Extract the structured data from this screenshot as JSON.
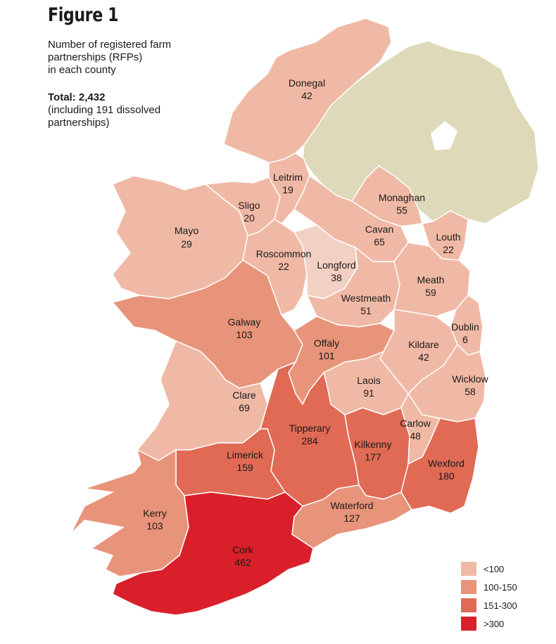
{
  "figure_title": "Figure 1",
  "description_lines": [
    "Number of registered farm",
    "partnerships (RFPs)",
    "in each county"
  ],
  "total": {
    "label": "Total: 2,432",
    "lines": [
      "(including 191 dissolved",
      "partnerships)"
    ]
  },
  "colors": {
    "under_100": "#f0b9a5",
    "range_100_150": "#e8947a",
    "range_151_300": "#e06a54",
    "over_300": "#d9202a",
    "longford_light": "#f3d0c4",
    "northern_ireland": "#ddd9b9",
    "border": "#ffffff"
  },
  "counties": [
    {
      "name": "Donegal",
      "value": "42"
    },
    {
      "name": "Leitrim",
      "value": "19"
    },
    {
      "name": "Sligo",
      "value": "20"
    },
    {
      "name": "Mayo",
      "value": "29"
    },
    {
      "name": "Monaghan",
      "value": "55"
    },
    {
      "name": "Cavan",
      "value": "65"
    },
    {
      "name": "Louth",
      "value": "22"
    },
    {
      "name": "Roscommon",
      "value": "22"
    },
    {
      "name": "Longford",
      "value": "38"
    },
    {
      "name": "Meath",
      "value": "59"
    },
    {
      "name": "Westmeath",
      "value": "51"
    },
    {
      "name": "Galway",
      "value": "103"
    },
    {
      "name": "Dublin",
      "value": "6"
    },
    {
      "name": "Offaly",
      "value": "101"
    },
    {
      "name": "Kildare",
      "value": "42"
    },
    {
      "name": "Laois",
      "value": "91"
    },
    {
      "name": "Wicklow",
      "value": "58"
    },
    {
      "name": "Clare",
      "value": "69"
    },
    {
      "name": "Tipperary",
      "value": "284"
    },
    {
      "name": "Carlow",
      "value": "48"
    },
    {
      "name": "Kilkenny",
      "value": "177"
    },
    {
      "name": "Limerick",
      "value": "159"
    },
    {
      "name": "Wexford",
      "value": "180"
    },
    {
      "name": "Waterford",
      "value": "127"
    },
    {
      "name": "Kerry",
      "value": "103"
    },
    {
      "name": "Cork",
      "value": "462"
    }
  ],
  "legend": [
    {
      "label": "<100",
      "color": "#f0b9a5"
    },
    {
      "label": "100-150",
      "color": "#e8947a"
    },
    {
      "label": "151-300",
      "color": "#e06a54"
    },
    {
      "label": ">300",
      "color": "#d9202a"
    }
  ]
}
